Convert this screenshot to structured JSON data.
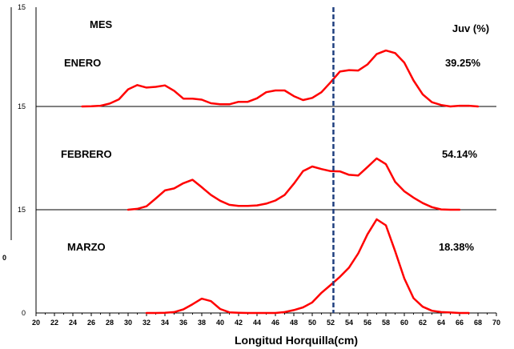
{
  "chart_data": {
    "type": "line",
    "xlabel": "Longitud Horquilla(cm)",
    "xlim": [
      20,
      70
    ],
    "x_ticks": [
      20,
      22,
      24,
      26,
      28,
      30,
      32,
      34,
      36,
      38,
      40,
      42,
      44,
      46,
      48,
      50,
      52,
      54,
      56,
      58,
      60,
      62,
      64,
      66,
      68,
      70
    ],
    "y_tick_labels": [
      "15",
      "15",
      "15",
      "0"
    ],
    "left_edge_fragment": "0",
    "grid": false,
    "line_color": "#ff0000",
    "reference_line": {
      "x": 52.3,
      "color": "#1f3f7f",
      "style": "dashed"
    },
    "header": {
      "left": "MES",
      "right": "Juv (%)"
    },
    "series": [
      {
        "name": "ENERO",
        "juv_percent": "39.25%",
        "x": [
          25,
          26,
          27,
          28,
          29,
          30,
          31,
          32,
          33,
          34,
          35,
          36,
          37,
          38,
          39,
          40,
          41,
          42,
          43,
          44,
          45,
          46,
          47,
          48,
          49,
          50,
          51,
          52,
          53,
          54,
          55,
          56,
          57,
          58,
          59,
          60,
          61,
          62,
          63,
          64,
          65,
          66,
          67,
          68
        ],
        "y": [
          0.0,
          0.05,
          0.2,
          0.8,
          2.0,
          4.8,
          6.0,
          5.3,
          5.5,
          5.9,
          4.4,
          2.2,
          2.2,
          1.9,
          0.9,
          0.6,
          0.6,
          1.3,
          1.3,
          2.3,
          4.0,
          4.5,
          4.5,
          2.9,
          1.8,
          2.4,
          4.0,
          6.8,
          9.8,
          10.2,
          10.1,
          11.8,
          14.7,
          15.7,
          15.0,
          12.3,
          7.3,
          3.4,
          1.2,
          0.4,
          0.0,
          0.2,
          0.2,
          0.0
        ]
      },
      {
        "name": "FEBRERO",
        "juv_percent": "54.14%",
        "x": [
          30,
          31,
          32,
          33,
          34,
          35,
          36,
          37,
          38,
          39,
          40,
          41,
          42,
          43,
          44,
          45,
          46,
          47,
          48,
          49,
          50,
          51,
          52,
          53,
          54,
          55,
          56,
          57,
          58,
          59,
          60,
          61,
          62,
          63,
          64,
          65,
          66
        ],
        "y": [
          0.0,
          0.3,
          1.2,
          3.9,
          6.7,
          7.4,
          9.2,
          10.4,
          7.8,
          5.1,
          3.1,
          1.7,
          1.3,
          1.3,
          1.5,
          2.1,
          3.2,
          5.1,
          9.0,
          13.4,
          15.0,
          14.1,
          13.4,
          13.3,
          12.1,
          11.9,
          14.8,
          17.8,
          15.8,
          9.7,
          6.4,
          4.2,
          2.3,
          0.9,
          0.1,
          0.0,
          0.0
        ]
      },
      {
        "name": "MARZO",
        "juv_percent": "18.38%",
        "x": [
          32,
          33,
          34,
          35,
          36,
          37,
          38,
          39,
          40,
          41,
          42,
          43,
          44,
          45,
          46,
          47,
          48,
          49,
          50,
          51,
          52,
          53,
          54,
          55,
          56,
          57,
          58,
          59,
          60,
          61,
          62,
          63,
          64,
          65,
          66,
          67
        ],
        "y": [
          0.0,
          0.0,
          0.1,
          0.4,
          1.6,
          3.9,
          6.4,
          5.3,
          1.8,
          0.3,
          0.1,
          0.0,
          0.0,
          0.0,
          0.0,
          0.4,
          1.3,
          2.5,
          4.7,
          9.0,
          12.5,
          16.1,
          20.3,
          26.6,
          35.1,
          41.8,
          39.1,
          27.6,
          15.4,
          6.6,
          2.8,
          1.0,
          0.4,
          0.2,
          0.0,
          0.0
        ]
      }
    ]
  }
}
